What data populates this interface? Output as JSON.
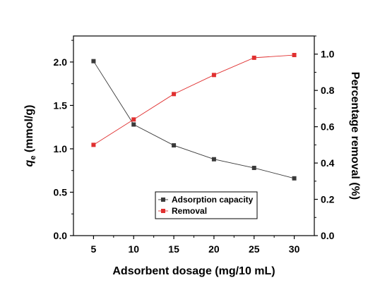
{
  "chart_data": {
    "type": "line",
    "x": [
      5,
      10,
      15,
      20,
      25,
      30
    ],
    "x_tick_labels": [
      "5",
      "10",
      "15",
      "20",
      "25",
      "30"
    ],
    "xlim": [
      2.5,
      32.5
    ],
    "xlabel": "Adsorbent dosage (mg/10 mL)",
    "y_left": {
      "label_main": "q",
      "label_sub": "e",
      "label_rest": " (mmol/g)",
      "ylim": [
        0,
        2.3
      ],
      "ticks": [
        0.0,
        0.5,
        1.0,
        1.5,
        2.0
      ],
      "tick_labels": [
        "0.0",
        "0.5",
        "1.0",
        "1.5",
        "2.0"
      ]
    },
    "y_right": {
      "label": "Percentage removal (%)",
      "ylim": [
        0,
        1.1
      ],
      "ticks": [
        0.0,
        0.2,
        0.4,
        0.6,
        0.8,
        1.0
      ],
      "tick_labels": [
        "0.0",
        "0.2",
        "0.4",
        "0.6",
        "0.8",
        "1.0"
      ]
    },
    "series": [
      {
        "name": "Adsorption capacity",
        "axis": "left",
        "color": "#3a3a3a",
        "marker": "square",
        "values": [
          2.01,
          1.28,
          1.04,
          0.88,
          0.78,
          0.66
        ]
      },
      {
        "name": "Removal",
        "axis": "right",
        "color": "#e03030",
        "marker": "square",
        "values": [
          0.5,
          0.64,
          0.78,
          0.885,
          0.98,
          0.995
        ]
      }
    ],
    "legend_position": "bottom-right",
    "grid": false
  }
}
